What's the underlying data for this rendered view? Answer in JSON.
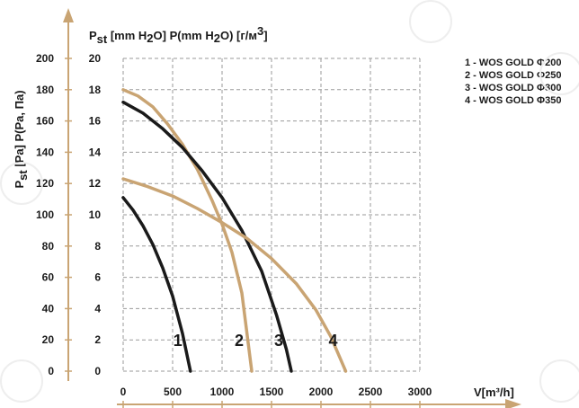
{
  "chart_data": {
    "type": "line",
    "title": "",
    "xlabel": "V[m³/h]",
    "xlim": [
      0,
      3000
    ],
    "ylim": [
      0,
      200
    ],
    "grid": true,
    "x_ticks": [
      "0",
      "500",
      "1000",
      "1500",
      "2000",
      "2500",
      "3000"
    ],
    "y_ticks_pa": [
      "0",
      "20",
      "40",
      "60",
      "80",
      "100",
      "120",
      "140",
      "160",
      "180",
      "200"
    ],
    "y_ticks_mmh2o": [
      "0",
      "2",
      "4",
      "6",
      "8",
      "10",
      "12",
      "14",
      "16",
      "18",
      "20"
    ],
    "ylabel_pa_bold": "P",
    "ylabel_pa_sub": "st",
    "ylabel_pa_rest": " [Pa]",
    "ylabel_pa_alt": " P(Pa, Па)",
    "ylabel_mm_bold": "P",
    "ylabel_mm_sub": "st",
    "ylabel_mm_rest": " [mm H",
    "ylabel_mm_rest2": "O]",
    "ylabel_mm_alt": " P(mm H",
    "ylabel_mm_alt2": "O) [г/м",
    "ylabel_mm_alt3": "]",
    "legend_position": "top-right",
    "legend": [
      "1 - WOS GOLD Φ200",
      "2 - WOS GOLD Φ250",
      "3 - WOS GOLD Φ300",
      "4 - WOS GOLD Φ350"
    ],
    "colors": {
      "dark": "#1a1a1a",
      "gold": "#c9a473",
      "grid": "#9a9a9a",
      "axis": "#c9a473"
    },
    "series": [
      {
        "label": "1",
        "color": "dark",
        "points": [
          [
            0,
            111
          ],
          [
            100,
            103
          ],
          [
            200,
            93
          ],
          [
            300,
            81
          ],
          [
            400,
            66
          ],
          [
            500,
            48
          ],
          [
            600,
            24
          ],
          [
            680,
            0
          ]
        ]
      },
      {
        "label": "2",
        "color": "gold",
        "points": [
          [
            0,
            180
          ],
          [
            150,
            176
          ],
          [
            300,
            169
          ],
          [
            450,
            158
          ],
          [
            600,
            145
          ],
          [
            750,
            129
          ],
          [
            900,
            109
          ],
          [
            1000,
            94
          ],
          [
            1100,
            76
          ],
          [
            1200,
            50
          ],
          [
            1300,
            0
          ]
        ]
      },
      {
        "label": "3",
        "color": "dark",
        "points": [
          [
            0,
            172
          ],
          [
            200,
            165
          ],
          [
            400,
            155
          ],
          [
            600,
            143
          ],
          [
            800,
            128
          ],
          [
            1000,
            111
          ],
          [
            1200,
            90
          ],
          [
            1400,
            64
          ],
          [
            1550,
            36
          ],
          [
            1650,
            14
          ],
          [
            1700,
            0
          ]
        ]
      },
      {
        "label": "4",
        "color": "gold",
        "points": [
          [
            0,
            123
          ],
          [
            250,
            118
          ],
          [
            500,
            112
          ],
          [
            750,
            104
          ],
          [
            1000,
            95
          ],
          [
            1250,
            85
          ],
          [
            1500,
            72
          ],
          [
            1750,
            56
          ],
          [
            1950,
            39
          ],
          [
            2100,
            22
          ],
          [
            2250,
            0
          ]
        ]
      }
    ]
  }
}
